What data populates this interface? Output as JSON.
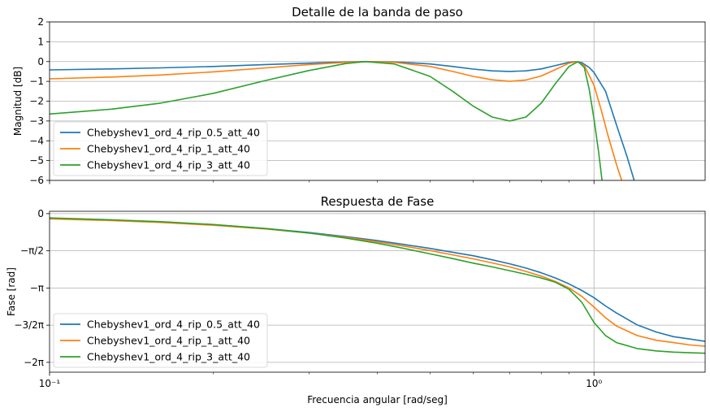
{
  "chart_data": [
    {
      "type": "line",
      "title": "Detalle de la banda de paso",
      "ylabel": "Magnitud [dB]",
      "xlabel": "",
      "xscale": "log",
      "xlim": [
        0.1,
        1.6
      ],
      "ylim": [
        -6,
        2
      ],
      "yticks": [
        "2",
        "1",
        "0",
        "−1",
        "−2",
        "−3",
        "−4",
        "−5",
        "−6"
      ],
      "grid": true,
      "legend_position": "lower-left",
      "series": [
        {
          "name": "Chebyshev1_ord_4_rip_0.5_att_40",
          "color": "#1f77b4",
          "x": [
            0.1,
            0.13,
            0.16,
            0.2,
            0.25,
            0.3,
            0.35,
            0.38,
            0.43,
            0.5,
            0.55,
            0.6,
            0.65,
            0.7,
            0.75,
            0.8,
            0.85,
            0.9,
            0.924,
            0.95,
            0.98,
            1.0,
            1.05,
            1.1,
            1.15,
            1.2
          ],
          "values": [
            -0.42,
            -0.37,
            -0.32,
            -0.25,
            -0.15,
            -0.08,
            -0.02,
            0.0,
            -0.02,
            -0.12,
            -0.25,
            -0.38,
            -0.47,
            -0.5,
            -0.47,
            -0.37,
            -0.2,
            -0.04,
            0.0,
            -0.06,
            -0.3,
            -0.55,
            -1.5,
            -3.2,
            -4.8,
            -6.5
          ]
        },
        {
          "name": "Chebyshev1_ord_4_rip_1_att_40",
          "color": "#ff7f0e",
          "x": [
            0.1,
            0.13,
            0.16,
            0.2,
            0.25,
            0.3,
            0.35,
            0.38,
            0.43,
            0.5,
            0.55,
            0.6,
            0.65,
            0.7,
            0.75,
            0.8,
            0.85,
            0.9,
            0.93,
            0.96,
            1.0,
            1.03,
            1.06,
            1.1,
            1.14
          ],
          "values": [
            -0.87,
            -0.78,
            -0.68,
            -0.52,
            -0.32,
            -0.15,
            -0.04,
            0.0,
            -0.04,
            -0.25,
            -0.5,
            -0.75,
            -0.92,
            -1.0,
            -0.93,
            -0.73,
            -0.4,
            -0.08,
            0.0,
            -0.2,
            -1.2,
            -2.4,
            -3.7,
            -5.2,
            -6.5
          ]
        },
        {
          "name": "Chebyshev1_ord_4_rip_3_att_40",
          "color": "#2ca02c",
          "x": [
            0.1,
            0.13,
            0.16,
            0.2,
            0.25,
            0.3,
            0.35,
            0.38,
            0.43,
            0.5,
            0.55,
            0.6,
            0.65,
            0.7,
            0.75,
            0.8,
            0.85,
            0.9,
            0.935,
            0.96,
            0.98,
            1.0,
            1.02,
            1.04
          ],
          "values": [
            -2.65,
            -2.4,
            -2.1,
            -1.6,
            -0.95,
            -0.45,
            -0.1,
            0.0,
            -0.12,
            -0.75,
            -1.5,
            -2.25,
            -2.8,
            -3.0,
            -2.8,
            -2.1,
            -1.1,
            -0.25,
            0.0,
            -0.3,
            -1.4,
            -2.9,
            -4.6,
            -6.5
          ]
        }
      ]
    },
    {
      "type": "line",
      "title": "Respuesta de Fase",
      "ylabel": "Fase [rad]",
      "xlabel": "Frecuencia angular [rad/seg]",
      "xscale": "log",
      "xlim": [
        0.1,
        1.6
      ],
      "ylim": [
        -6.7,
        0.1
      ],
      "xticks": [
        "10⁻¹",
        "10⁰"
      ],
      "yticks": [
        {
          "value": 0,
          "label": "0"
        },
        {
          "value": -1.5708,
          "label": "−π/2"
        },
        {
          "value": -3.1416,
          "label": "−π"
        },
        {
          "value": -4.7124,
          "label": "−3/2π"
        },
        {
          "value": -6.2832,
          "label": "−2π"
        }
      ],
      "grid": true,
      "legend_position": "lower-left",
      "series": [
        {
          "name": "Chebyshev1_ord_4_rip_0.5_att_40",
          "color": "#1f77b4",
          "x": [
            0.1,
            0.13,
            0.16,
            0.2,
            0.25,
            0.3,
            0.35,
            0.4,
            0.45,
            0.5,
            0.55,
            0.6,
            0.65,
            0.7,
            0.75,
            0.8,
            0.85,
            0.9,
            0.95,
            1.0,
            1.05,
            1.1,
            1.2,
            1.3,
            1.4,
            1.5,
            1.6
          ],
          "values": [
            -0.2,
            -0.27,
            -0.35,
            -0.47,
            -0.63,
            -0.8,
            -0.97,
            -1.14,
            -1.31,
            -1.47,
            -1.63,
            -1.78,
            -1.95,
            -2.12,
            -2.3,
            -2.5,
            -2.72,
            -2.97,
            -3.25,
            -3.55,
            -3.9,
            -4.2,
            -4.7,
            -5.0,
            -5.2,
            -5.3,
            -5.4
          ]
        },
        {
          "name": "Chebyshev1_ord_4_rip_1_att_40",
          "color": "#ff7f0e",
          "x": [
            0.1,
            0.13,
            0.16,
            0.2,
            0.25,
            0.3,
            0.35,
            0.4,
            0.45,
            0.5,
            0.55,
            0.6,
            0.65,
            0.7,
            0.75,
            0.8,
            0.85,
            0.9,
            0.95,
            1.0,
            1.05,
            1.1,
            1.2,
            1.3,
            1.4,
            1.5,
            1.6
          ],
          "values": [
            -0.22,
            -0.29,
            -0.37,
            -0.49,
            -0.65,
            -0.82,
            -1.0,
            -1.19,
            -1.38,
            -1.56,
            -1.74,
            -1.91,
            -2.08,
            -2.25,
            -2.44,
            -2.64,
            -2.87,
            -3.14,
            -3.5,
            -3.95,
            -4.4,
            -4.75,
            -5.15,
            -5.35,
            -5.45,
            -5.55,
            -5.6
          ]
        },
        {
          "name": "Chebyshev1_ord_4_rip_3_att_40",
          "color": "#2ca02c",
          "x": [
            0.1,
            0.13,
            0.16,
            0.2,
            0.25,
            0.3,
            0.35,
            0.4,
            0.45,
            0.5,
            0.55,
            0.6,
            0.65,
            0.7,
            0.75,
            0.8,
            0.85,
            0.9,
            0.95,
            1.0,
            1.05,
            1.1,
            1.2,
            1.3,
            1.4,
            1.5,
            1.6
          ],
          "values": [
            -0.18,
            -0.26,
            -0.34,
            -0.46,
            -0.63,
            -0.82,
            -1.03,
            -1.25,
            -1.48,
            -1.7,
            -1.9,
            -2.09,
            -2.25,
            -2.41,
            -2.56,
            -2.72,
            -2.9,
            -3.2,
            -3.75,
            -4.6,
            -5.15,
            -5.45,
            -5.7,
            -5.8,
            -5.85,
            -5.88,
            -5.9
          ]
        }
      ]
    }
  ]
}
